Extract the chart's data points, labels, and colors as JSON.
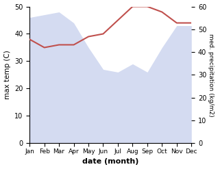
{
  "months": [
    "Jan",
    "Feb",
    "Mar",
    "Apr",
    "May",
    "Jun",
    "Jul",
    "Aug",
    "Sep",
    "Oct",
    "Nov",
    "Dec"
  ],
  "temperature": [
    38,
    35,
    36,
    36,
    39,
    40,
    45,
    50,
    50,
    48,
    44,
    44
  ],
  "precipitation_left": [
    46,
    47,
    48,
    44,
    35,
    27,
    26,
    29,
    26,
    35,
    43,
    43
  ],
  "temp_color": "#c0504d",
  "precip_fill_color": "#b8c4e8",
  "temp_ylim": [
    0,
    50
  ],
  "precip_ylim": [
    0,
    60
  ],
  "xlabel": "date (month)",
  "ylabel_left": "max temp (C)",
  "ylabel_right": "med. precipitation (kg/m2)",
  "temp_yticks": [
    0,
    10,
    20,
    30,
    40,
    50
  ],
  "precip_yticks": [
    0,
    10,
    20,
    30,
    40,
    50,
    60
  ]
}
